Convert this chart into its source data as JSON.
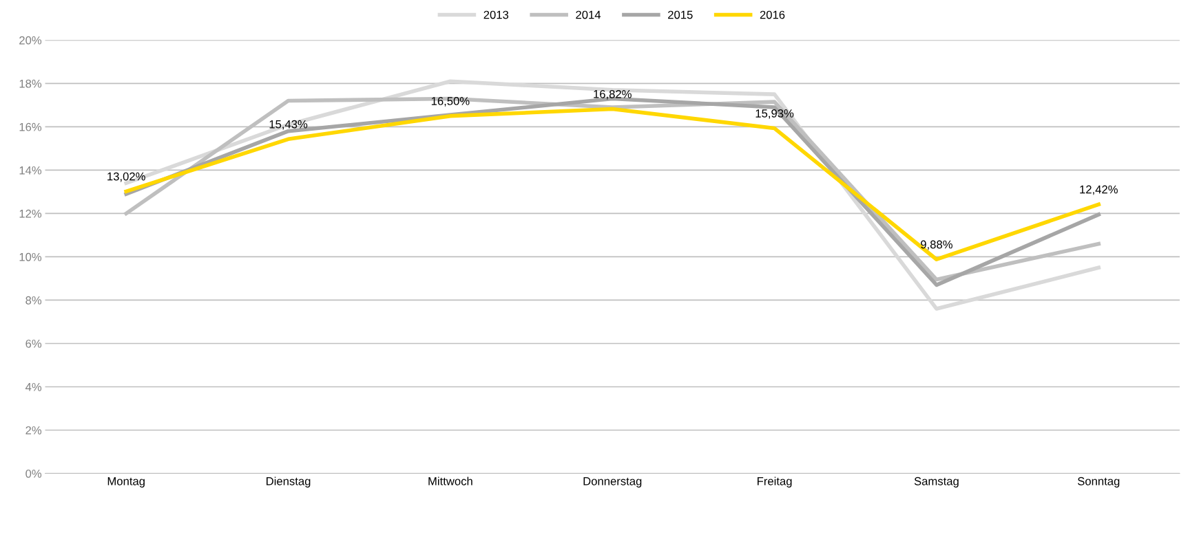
{
  "chart_data": {
    "type": "line",
    "categories": [
      "Montag",
      "Dienstag",
      "Mittwoch",
      "Donnerstag",
      "Freitag",
      "Samstag",
      "Sonntag"
    ],
    "series": [
      {
        "name": "2013",
        "color": "#d9d9d9",
        "values": [
          13.4,
          16.1,
          18.1,
          17.7,
          17.5,
          7.6,
          9.5
        ]
      },
      {
        "name": "2014",
        "color": "#bfbfbf",
        "values": [
          12.0,
          17.2,
          17.3,
          16.9,
          17.15,
          8.95,
          10.6
        ]
      },
      {
        "name": "2015",
        "color": "#a6a6a6",
        "values": [
          12.9,
          15.8,
          16.55,
          17.3,
          16.9,
          8.7,
          11.95
        ]
      },
      {
        "name": "2016",
        "color": "#ffd700",
        "values": [
          13.02,
          15.43,
          16.5,
          16.82,
          15.93,
          9.88,
          12.42
        ],
        "value_labels": [
          "13,02%",
          "15,43%",
          "16,50%",
          "16,82%",
          "15,93%",
          "9,88%",
          "12,42%"
        ]
      }
    ],
    "ylim": [
      0,
      20
    ],
    "yticks": [
      {
        "value": 0,
        "label": "0%"
      },
      {
        "value": 2,
        "label": "2%"
      },
      {
        "value": 4,
        "label": "4%"
      },
      {
        "value": 6,
        "label": "6%"
      },
      {
        "value": 8,
        "label": "8%"
      },
      {
        "value": 10,
        "label": "10%"
      },
      {
        "value": 12,
        "label": "12%"
      },
      {
        "value": 14,
        "label": "14%"
      },
      {
        "value": 16,
        "label": "16%"
      },
      {
        "value": 18,
        "label": "18%"
      },
      {
        "value": 20,
        "label": "20%"
      }
    ],
    "grid": "y",
    "legend": "top",
    "marker": "none",
    "line_style": "solid"
  }
}
